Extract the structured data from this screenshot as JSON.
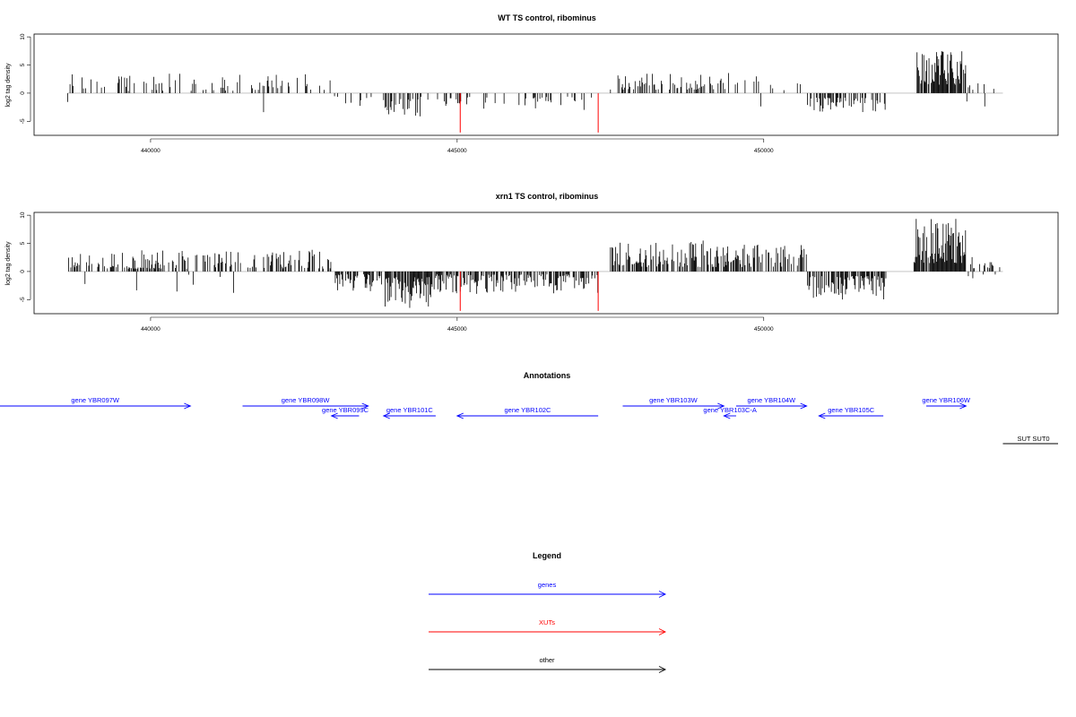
{
  "chart_data": [
    {
      "type": "bar",
      "title": "WT TS control, ribominus",
      "ylabel": "log2 tag density",
      "xlabel": "",
      "xlim": [
        438100,
        454800
      ],
      "ylim": [
        -7.5,
        10.5
      ],
      "xticks": [
        440000,
        445000,
        450000
      ],
      "xtick_labels": [
        "440000",
        "445000",
        "450000"
      ],
      "yticks": [
        10,
        5,
        0,
        -5
      ],
      "ytick_labels": [
        "10",
        "5",
        "0",
        "-5"
      ],
      "grid": false,
      "baseline_color": "#bbbbbb",
      "bar_color": "#000000",
      "highlight_color": "#ff0000",
      "seed": 12345,
      "segments": [
        {
          "from": 438650,
          "to": 443000,
          "density": 0.22,
          "min": 0.4,
          "max": 3.5,
          "sign": 1,
          "neg_prob": 0.04
        },
        {
          "from": 443000,
          "to": 443700,
          "density": 0.18,
          "min": 0.5,
          "max": 2.8,
          "sign": -1
        },
        {
          "from": 443800,
          "to": 444400,
          "density": 0.5,
          "min": 1.0,
          "max": 4.5,
          "sign": -1
        },
        {
          "from": 444400,
          "to": 447200,
          "density": 0.22,
          "min": 0.6,
          "max": 3.2,
          "sign": -1
        },
        {
          "from": 447500,
          "to": 449500,
          "density": 0.3,
          "min": 0.6,
          "max": 3.6,
          "sign": 1
        },
        {
          "from": 449500,
          "to": 450700,
          "density": 0.12,
          "min": 0.5,
          "max": 3.0,
          "sign": 1,
          "neg_prob": 0.05
        },
        {
          "from": 450700,
          "to": 452000,
          "density": 0.45,
          "min": 0.8,
          "max": 3.4,
          "sign": -1
        },
        {
          "from": 452500,
          "to": 453300,
          "density": 0.85,
          "min": 1.5,
          "max": 7.5,
          "sign": 1
        },
        {
          "from": 453300,
          "to": 453900,
          "density": 0.2,
          "min": 0.5,
          "max": 2.8,
          "sign": 1,
          "neg_prob": 0.3
        }
      ],
      "highlights": [
        {
          "x": 445050,
          "y": -7.0
        },
        {
          "x": 447300,
          "y": -7.0
        }
      ]
    },
    {
      "type": "bar",
      "title": "xrn1 TS control, ribominus",
      "ylabel": "log2 tag density",
      "xlabel": "",
      "xlim": [
        438100,
        454800
      ],
      "ylim": [
        -7.5,
        10.5
      ],
      "xticks": [
        440000,
        445000,
        450000
      ],
      "xtick_labels": [
        "440000",
        "445000",
        "450000"
      ],
      "yticks": [
        10,
        5,
        0,
        -5
      ],
      "ytick_labels": [
        "10",
        "5",
        "0",
        "-5"
      ],
      "grid": false,
      "baseline_color": "#bbbbbb",
      "bar_color": "#000000",
      "highlight_color": "#ff0000",
      "seed": 67890,
      "segments": [
        {
          "from": 438650,
          "to": 443000,
          "density": 0.45,
          "min": 0.5,
          "max": 3.9,
          "sign": 1,
          "neg_prob": 0.05
        },
        {
          "from": 443000,
          "to": 443800,
          "density": 0.6,
          "min": 0.5,
          "max": 3.5,
          "sign": -1
        },
        {
          "from": 443800,
          "to": 444600,
          "density": 0.9,
          "min": 1.0,
          "max": 6.5,
          "sign": -1
        },
        {
          "from": 444600,
          "to": 447300,
          "density": 0.6,
          "min": 0.5,
          "max": 4.0,
          "sign": -1
        },
        {
          "from": 447500,
          "to": 449500,
          "density": 0.6,
          "min": 0.8,
          "max": 5.5,
          "sign": 1
        },
        {
          "from": 449500,
          "to": 450700,
          "density": 0.55,
          "min": 0.8,
          "max": 5.0,
          "sign": 1
        },
        {
          "from": 450700,
          "to": 452000,
          "density": 0.75,
          "min": 0.8,
          "max": 5.0,
          "sign": -1
        },
        {
          "from": 452450,
          "to": 453300,
          "density": 0.95,
          "min": 1.5,
          "max": 9.5,
          "sign": 1
        },
        {
          "from": 453300,
          "to": 453900,
          "density": 0.35,
          "min": 0.5,
          "max": 3.5,
          "sign": 1,
          "neg_prob": 0.4
        }
      ],
      "highlights": [
        {
          "x": 445050,
          "y": -7.0
        },
        {
          "x": 447300,
          "y": -7.0
        }
      ]
    }
  ],
  "annotations": {
    "title": "Annotations",
    "genes": [
      {
        "label": "gene YBR097W",
        "start": 437500,
        "end": 440650,
        "strand": "+",
        "row": 1
      },
      {
        "label": "gene YBR098W",
        "start": 441500,
        "end": 443550,
        "strand": "+",
        "row": 1
      },
      {
        "label": "gene YBR099C",
        "start": 442950,
        "end": 443400,
        "strand": "-",
        "row": 2
      },
      {
        "label": "gene YBR101C",
        "start": 443800,
        "end": 444650,
        "strand": "-",
        "row": 2
      },
      {
        "label": "gene YBR102C",
        "start": 445000,
        "end": 447300,
        "strand": "-",
        "row": 2
      },
      {
        "label": "gene YBR103W",
        "start": 447700,
        "end": 449350,
        "strand": "+",
        "row": 1
      },
      {
        "label": "gene YBR103C-A",
        "start": 449350,
        "end": 449550,
        "strand": "-",
        "row": 2
      },
      {
        "label": "gene YBR104W",
        "start": 449550,
        "end": 450700,
        "strand": "+",
        "row": 1
      },
      {
        "label": "gene YBR105C",
        "start": 450900,
        "end": 451950,
        "strand": "-",
        "row": 2
      },
      {
        "label": "gene YBR106W",
        "start": 452650,
        "end": 453300,
        "strand": "+",
        "row": 1
      }
    ],
    "other": [
      {
        "label": "SUT SUT0",
        "start": 453900,
        "end": 454800,
        "row": 3
      }
    ]
  },
  "legend": {
    "title": "Legend",
    "items": [
      {
        "label": "genes",
        "color": "#0000ff"
      },
      {
        "label": "XUTs",
        "color": "#ff0000"
      },
      {
        "label": "other",
        "color": "#000000"
      }
    ]
  },
  "colors": {
    "genes": "#0000ff",
    "xuts": "#ff0000",
    "other": "#000000"
  }
}
